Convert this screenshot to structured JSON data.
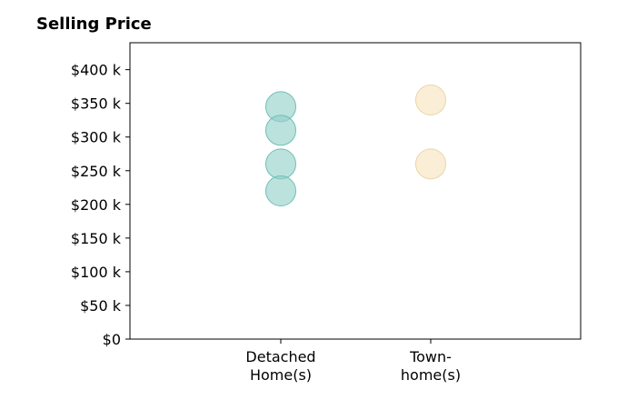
{
  "chart_data": {
    "type": "scatter",
    "title": "Selling Price",
    "categories": [
      "Detached\nHome(s)",
      "Town-\nhome(s)"
    ],
    "series": [
      {
        "category": "Detached\nHome(s)",
        "color": "#8fcfc8",
        "stroke": "#6fbfb6",
        "values": [
          345000,
          310000,
          260000,
          220000
        ]
      },
      {
        "category": "Town-\nhome(s)",
        "color": "#f7e3bd",
        "stroke": "#ecd5a6",
        "values": [
          355000,
          260000
        ]
      }
    ],
    "yticks": [
      0,
      50000,
      100000,
      150000,
      200000,
      250000,
      300000,
      350000,
      400000
    ],
    "ytick_labels": [
      "$0",
      "$50 k",
      "$100 k",
      "$150 k",
      "$200 k",
      "$250 k",
      "$300 k",
      "$350 k",
      "$400 k"
    ],
    "ylim": [
      0,
      440000
    ],
    "xlabel": "",
    "ylabel": "",
    "grid": false,
    "legend": "none"
  }
}
